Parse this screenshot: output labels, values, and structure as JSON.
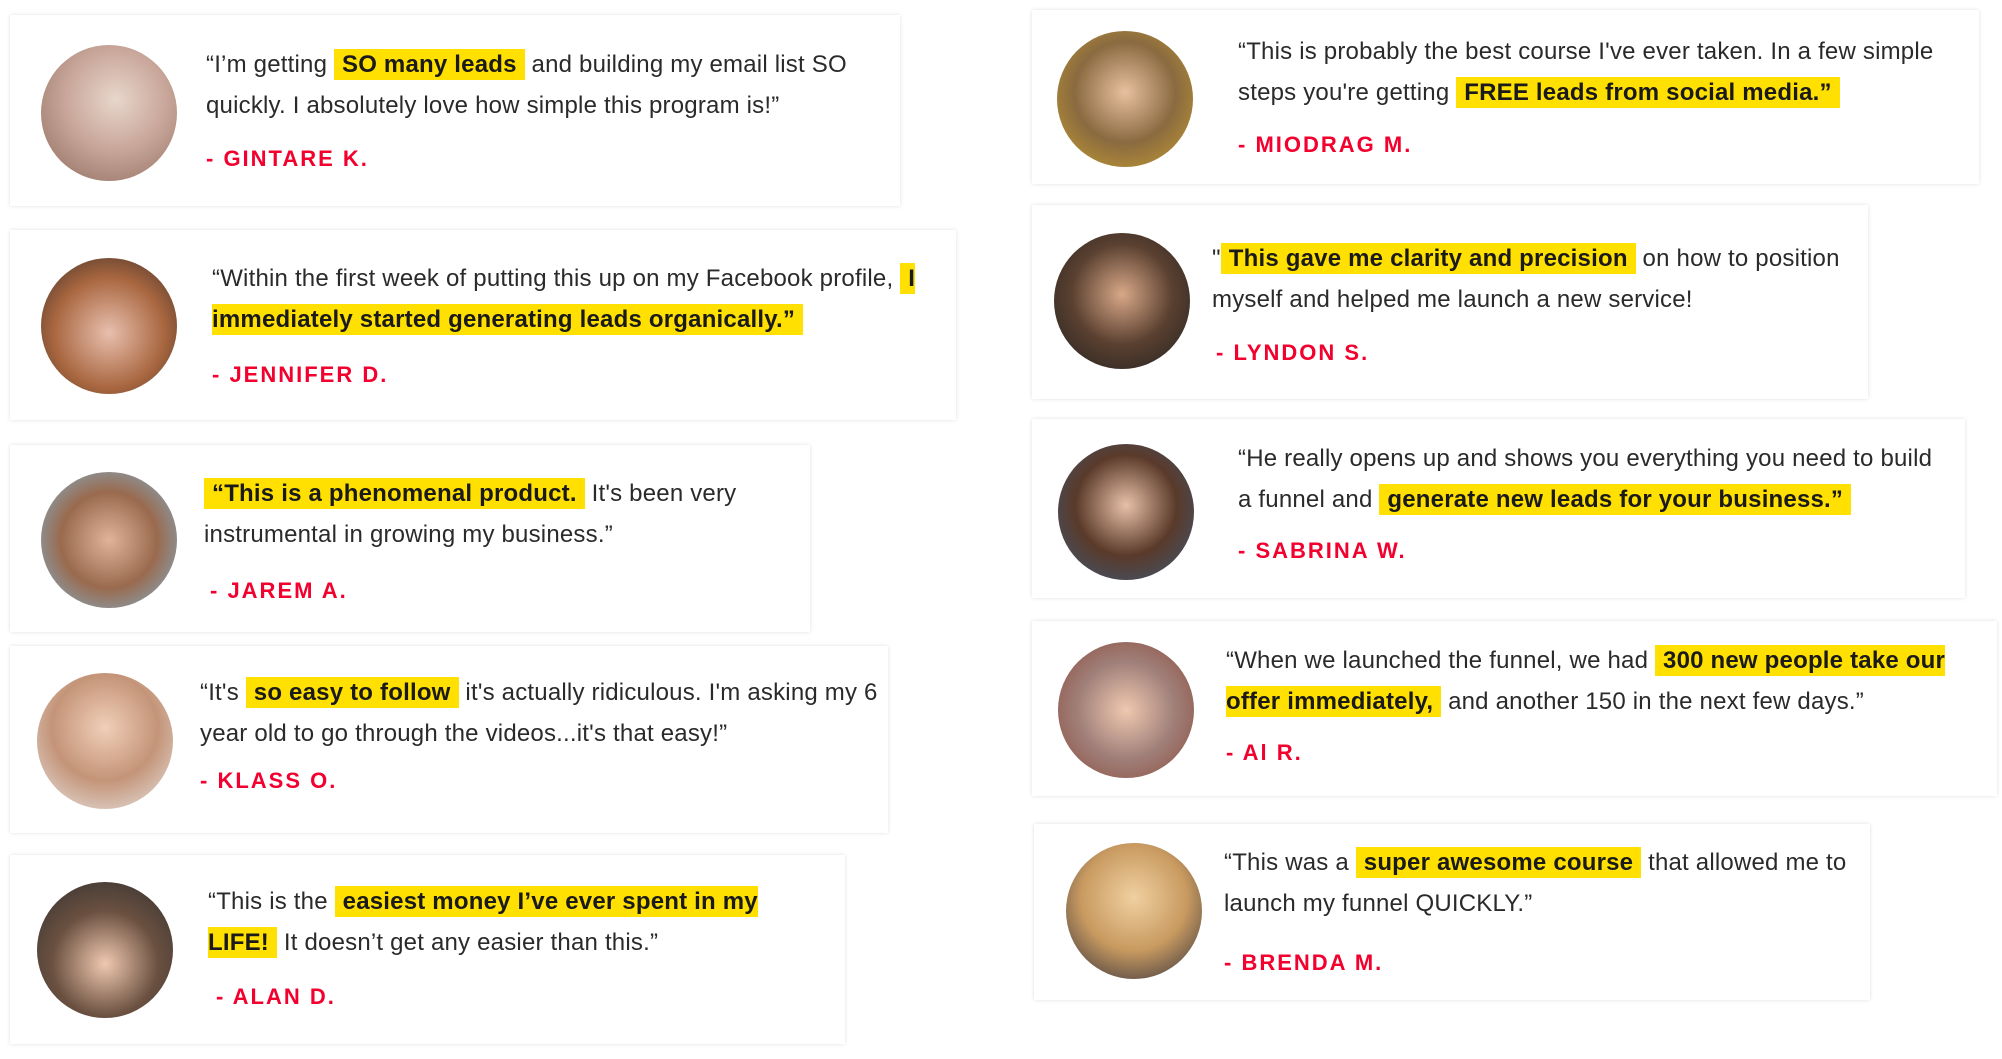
{
  "accent_highlight": "#ffe000",
  "accent_name": "#f2002e",
  "testimonials": [
    {
      "pre": "“I’m getting ",
      "highlight": "SO many leads",
      "post": " and building my email list SO quickly. I absolutely love how simple this program is!”",
      "name": "- GINTARE K."
    },
    {
      "pre": "“Within the first week of putting this up on my Facebook profile, ",
      "highlight": "I immediately started generating leads organically.”",
      "post": "",
      "name": "- JENNIFER D."
    },
    {
      "pre": "",
      "highlight": "“This is a phenomenal product.",
      "post": " It's been very instrumental in growing my business.”",
      "name": "- JAREM A."
    },
    {
      "pre": "“It's ",
      "highlight": "so easy to follow",
      "post": " it's actually ridiculous. I'm asking my 6 year old to go through the videos...it's that easy!”",
      "name": "- KLASS O."
    },
    {
      "pre": "“This is the ",
      "highlight": "easiest money I’ve ever spent in my LIFE!",
      "post": " It doesn’t get any easier than this.”",
      "name": "- ALAN D."
    },
    {
      "pre": "“This is probably the best course I've ever taken. In a few simple steps you're getting ",
      "highlight": "FREE leads from social media.”",
      "post": "",
      "name": "- MIODRAG M."
    },
    {
      "pre": "\"",
      "highlight": "This gave me clarity and precision",
      "post": " on how to position myself and helped me launch a new service!",
      "name": "- LYNDON S."
    },
    {
      "pre": "“He really opens up and shows you everything you need to build a funnel and ",
      "highlight": "generate new leads for your business.”",
      "post": "",
      "name": "- SABRINA W."
    },
    {
      "pre": "“When we launched the funnel, we had ",
      "highlight": "300 new people take our offer immediately,",
      "post": " and another 150 in the next few days.”",
      "name": "- Al R."
    },
    {
      "pre": "“This was a ",
      "highlight": "super awesome course",
      "post": " that allowed me to launch my funnel QUICKLY.”",
      "name": "- BRENDA M."
    }
  ]
}
